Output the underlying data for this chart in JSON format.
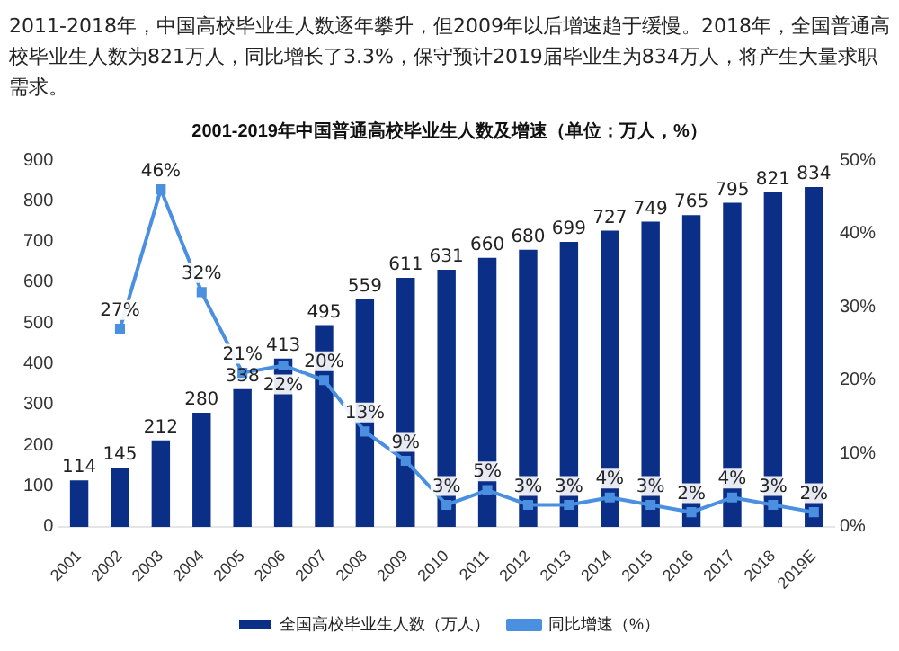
{
  "chart_data": {
    "type": "bar",
    "title": "2001-2019年中国普通高校毕业生人数及增速（单位：万人，%）",
    "annotations": [
      "2011-2018年，中国高校毕业生人数逐年攀升，但2009年以后增速趋于缓慢。2018年，全国普通高校毕业生人数为821万人，同比增长了3.3%，保守预计2019届毕业生为834万人，将产生大量求职需求。"
    ],
    "categories": [
      "2001",
      "2002",
      "2003",
      "2004",
      "2005",
      "2006",
      "2007",
      "2008",
      "2009",
      "2010",
      "2011",
      "2012",
      "2013",
      "2014",
      "2015",
      "2016",
      "2017",
      "2018",
      "2019E"
    ],
    "series": [
      {
        "name": "全国高校毕业生人数（万人）",
        "color": "#0b2f86",
        "values": [
          114,
          145,
          212,
          280,
          338,
          413,
          495,
          559,
          611,
          631,
          660,
          680,
          699,
          727,
          749,
          765,
          795,
          821,
          834
        ]
      },
      {
        "name": "同比增速（%）",
        "type": "line",
        "axis": "y2",
        "color": "#4a8fe0",
        "marker": "square",
        "values": [
          null,
          27,
          46,
          32,
          21,
          22,
          20,
          13,
          9,
          3,
          5,
          3,
          3,
          4,
          3,
          2,
          4,
          3,
          2
        ],
        "value_labels": [
          null,
          "27%",
          "46%",
          "32%",
          "21%",
          "22%",
          "20%",
          "13%",
          "9%",
          "3%",
          "5%",
          "3%",
          "3%",
          "4%",
          "3%",
          "2%",
          "4%",
          "3%",
          "2%"
        ]
      }
    ],
    "data_labels": true,
    "ylim": [
      0,
      900
    ],
    "yticks": [
      0,
      100,
      200,
      300,
      400,
      500,
      600,
      700,
      800,
      900
    ],
    "y2lim": [
      0,
      50
    ],
    "y2ticks": [
      {
        "value": 0,
        "label": "0%"
      },
      {
        "value": 10,
        "label": "10%"
      },
      {
        "value": 20,
        "label": "20%"
      },
      {
        "value": 30,
        "label": "30%"
      },
      {
        "value": 40,
        "label": "40%"
      },
      {
        "value": 50,
        "label": "50%"
      }
    ],
    "grid": false,
    "legend": "bottom"
  }
}
